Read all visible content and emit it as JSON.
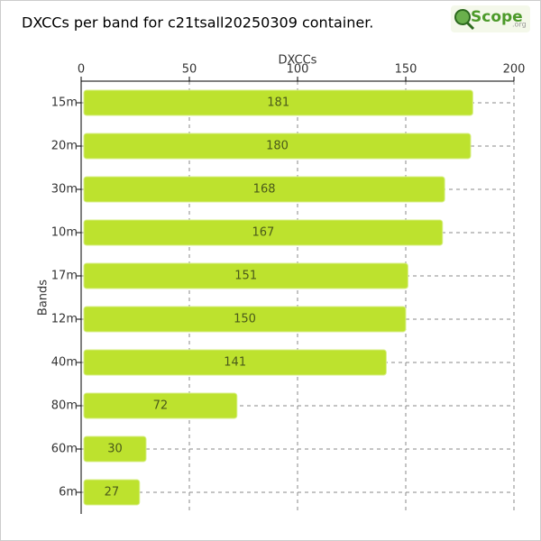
{
  "chart_data": {
    "type": "bar",
    "orientation": "horizontal",
    "title": "DXCCs per band for c21tsall20250309 container.",
    "logo": {
      "text": "Scope",
      "suffix": ".org"
    },
    "xlabel": "DXCCs",
    "ylabel": "Bands",
    "categories": [
      "15m",
      "20m",
      "30m",
      "10m",
      "17m",
      "12m",
      "40m",
      "80m",
      "60m",
      "6m"
    ],
    "values": [
      181,
      180,
      168,
      167,
      151,
      150,
      141,
      72,
      30,
      27
    ],
    "color": "#bde22e",
    "xlim": [
      0,
      200
    ],
    "xticks": [
      0,
      50,
      100,
      150,
      200
    ],
    "grid": true
  }
}
